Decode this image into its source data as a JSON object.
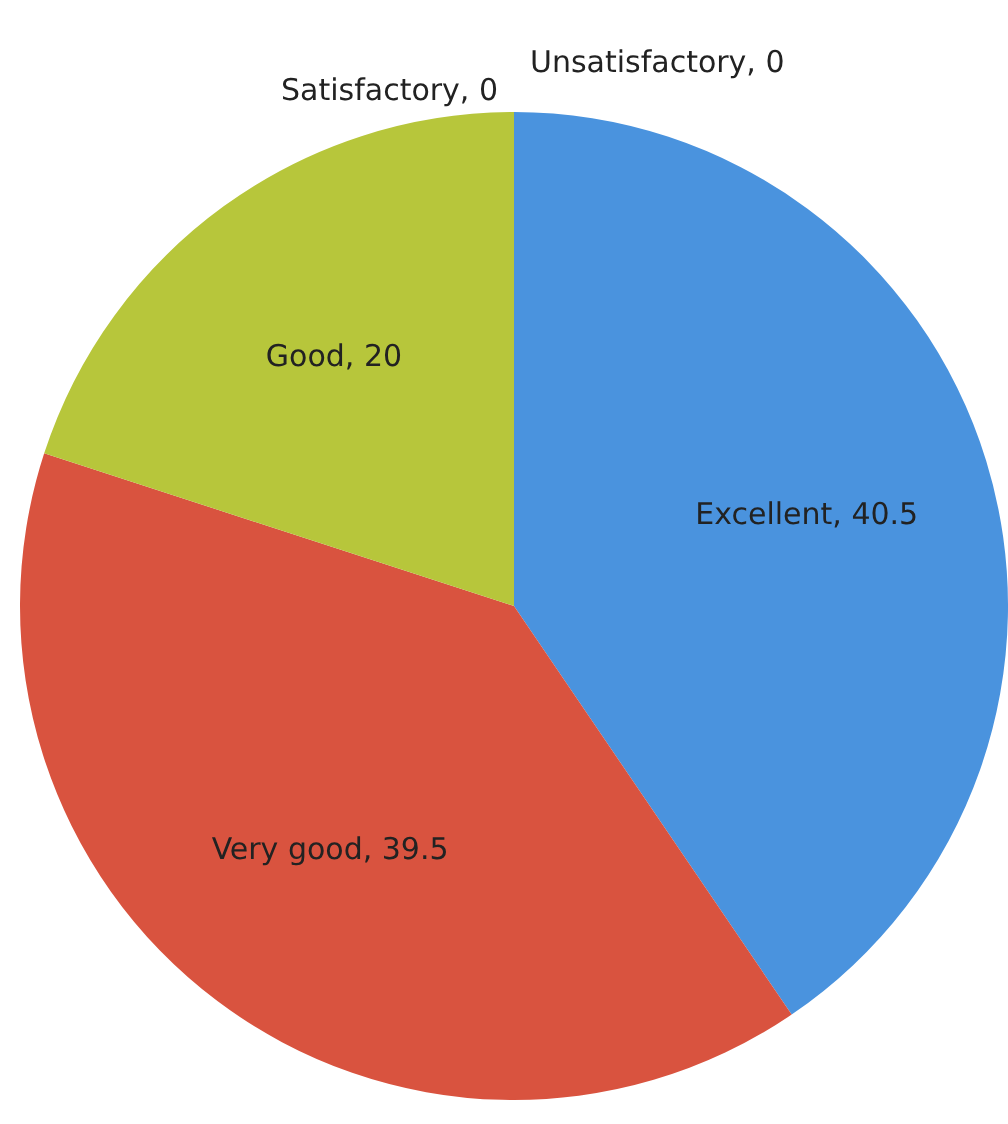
{
  "chart_data": {
    "type": "pie",
    "categories": [
      "Excellent",
      "Very good",
      "Good",
      "Satisfactory",
      "Unsatisfactory"
    ],
    "values": [
      40.5,
      39.5,
      20,
      0,
      0
    ],
    "value_labels": [
      ", 40.5",
      ", 39.5",
      ", 20",
      ", 0",
      ", 0"
    ],
    "colors": [
      "#4a93de",
      "#d9533f",
      "#b7c63b",
      "#8064a2",
      "#4bacc6"
    ],
    "legend": false
  }
}
